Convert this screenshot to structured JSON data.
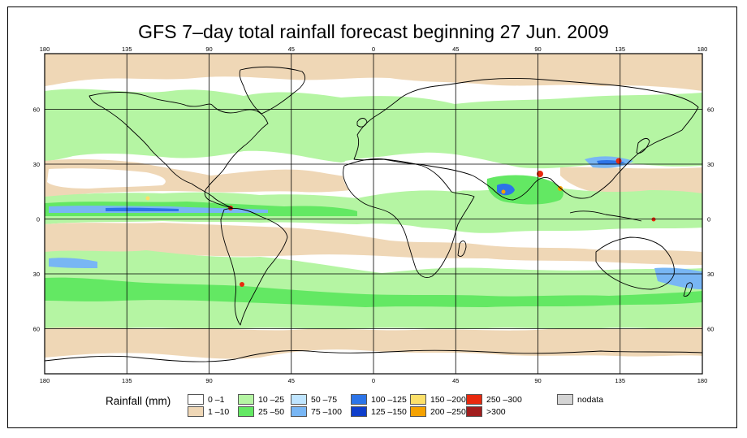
{
  "title": "GFS 7–day total rainfall forecast beginning 27 Jun. 2009",
  "map": {
    "lon_ticks": [
      "180",
      "135",
      "90",
      "45",
      "0",
      "45",
      "90",
      "135",
      "180"
    ],
    "lat_ticks": [
      "60",
      "30",
      "0",
      "30",
      "60"
    ]
  },
  "legend": {
    "title": "Rainfall (mm)",
    "items": [
      {
        "label": "0 –1",
        "color": "#ffffff"
      },
      {
        "label": "1 –10",
        "color": "#efd7b6"
      },
      {
        "label": "10 –25",
        "color": "#b5f5a3"
      },
      {
        "label": "25 –50",
        "color": "#63e863"
      },
      {
        "label": "50 –75",
        "color": "#bfe5ff"
      },
      {
        "label": "75 –100",
        "color": "#78b6f4"
      },
      {
        "label": "100 –125",
        "color": "#2c74e8"
      },
      {
        "label": "125 –150",
        "color": "#0f3ecb"
      },
      {
        "label": "150 –200",
        "color": "#fce06a"
      },
      {
        "label": "200 –250",
        "color": "#f5a200"
      },
      {
        "label": "250 –300",
        "color": "#e8290e"
      },
      {
        ">300": "",
        "label": ">300",
        "color": "#a11d1d"
      },
      {
        "label": "nodata",
        "color": "#d4d4d4"
      }
    ]
  }
}
